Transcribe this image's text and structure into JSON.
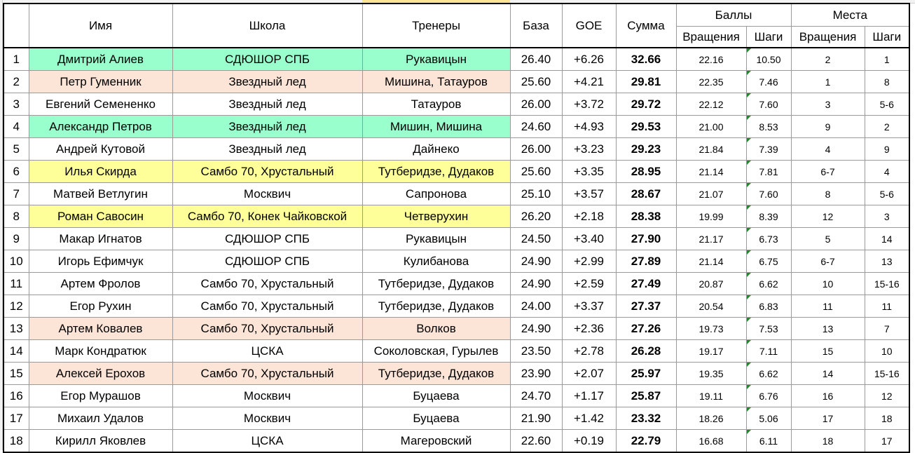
{
  "colors": {
    "green": "#99ffcc",
    "peach": "#fce4d6",
    "yellow": "#ffff99",
    "white": "#ffffff",
    "mark": "#1e8c2e"
  },
  "header": {
    "name": "Имя",
    "school": "Школа",
    "coaches": "Тренеры",
    "base": "База",
    "goe": "GOE",
    "total": "Сумма",
    "points": "Баллы",
    "places": "Места",
    "spins": "Вращения",
    "steps": "Шаги"
  },
  "rows": [
    {
      "n": "1",
      "name": "Дмитрий Алиев",
      "school": "СДЮШОР СПБ",
      "coaches": "Рукавицын",
      "base": "26.40",
      "goe": "+6.26",
      "total": "32.66",
      "pts_spins": "22.16",
      "pts_steps": "10.50",
      "pl_spins": "2",
      "pl_steps": "1",
      "hl": "green"
    },
    {
      "n": "2",
      "name": "Петр Гуменник",
      "school": "Звездный лед",
      "coaches": "Мишина, Татауров",
      "base": "25.60",
      "goe": "+4.21",
      "total": "29.81",
      "pts_spins": "22.35",
      "pts_steps": "7.46",
      "pl_spins": "1",
      "pl_steps": "8",
      "hl": "peach"
    },
    {
      "n": "3",
      "name": "Евгений Семененко",
      "school": "Звездный лед",
      "coaches": "Татауров",
      "base": "26.00",
      "goe": "+3.72",
      "total": "29.72",
      "pts_spins": "22.12",
      "pts_steps": "7.60",
      "pl_spins": "3",
      "pl_steps": "5-6",
      "hl": "white"
    },
    {
      "n": "4",
      "name": "Александр Петров",
      "school": "Звездный лед",
      "coaches": "Мишин, Мишина",
      "base": "24.60",
      "goe": "+4.93",
      "total": "29.53",
      "pts_spins": "21.00",
      "pts_steps": "8.53",
      "pl_spins": "9",
      "pl_steps": "2",
      "hl": "green"
    },
    {
      "n": "5",
      "name": "Андрей Кутовой",
      "school": "Звездный лед",
      "coaches": "Дайнеко",
      "base": "26.00",
      "goe": "+3.23",
      "total": "29.23",
      "pts_spins": "21.84",
      "pts_steps": "7.39",
      "pl_spins": "4",
      "pl_steps": "9",
      "hl": "white"
    },
    {
      "n": "6",
      "name": "Илья Скирда",
      "school": "Самбо 70, Хрустальный",
      "coaches": "Тутберидзе, Дудаков",
      "base": "25.60",
      "goe": "+3.35",
      "total": "28.95",
      "pts_spins": "21.14",
      "pts_steps": "7.81",
      "pl_spins": "6-7",
      "pl_steps": "4",
      "hl": "yellow"
    },
    {
      "n": "7",
      "name": "Матвей Ветлугин",
      "school": "Москвич",
      "coaches": "Сапронова",
      "base": "25.10",
      "goe": "+3.57",
      "total": "28.67",
      "pts_spins": "21.07",
      "pts_steps": "7.60",
      "pl_spins": "8",
      "pl_steps": "5-6",
      "hl": "white"
    },
    {
      "n": "8",
      "name": "Роман Савосин",
      "school": "Самбо 70, Конек Чайковской",
      "coaches": "Четверухин",
      "base": "26.20",
      "goe": "+2.18",
      "total": "28.38",
      "pts_spins": "19.99",
      "pts_steps": "8.39",
      "pl_spins": "12",
      "pl_steps": "3",
      "hl": "yellow"
    },
    {
      "n": "9",
      "name": "Макар Игнатов",
      "school": "СДЮШОР СПБ",
      "coaches": "Рукавицын",
      "base": "24.50",
      "goe": "+3.40",
      "total": "27.90",
      "pts_spins": "21.17",
      "pts_steps": "6.73",
      "pl_spins": "5",
      "pl_steps": "14",
      "hl": "white"
    },
    {
      "n": "10",
      "name": "Игорь Ефимчук",
      "school": "СДЮШОР СПБ",
      "coaches": "Кулибанова",
      "base": "24.90",
      "goe": "+2.99",
      "total": "27.89",
      "pts_spins": "21.14",
      "pts_steps": "6.75",
      "pl_spins": "6-7",
      "pl_steps": "13",
      "hl": "white"
    },
    {
      "n": "11",
      "name": "Артем Фролов",
      "school": "Самбо 70, Хрустальный",
      "coaches": "Тутберидзе, Дудаков",
      "base": "24.90",
      "goe": "+2.59",
      "total": "27.49",
      "pts_spins": "20.87",
      "pts_steps": "6.62",
      "pl_spins": "10",
      "pl_steps": "15-16",
      "hl": "white"
    },
    {
      "n": "12",
      "name": "Егор Рухин",
      "school": "Самбо 70, Хрустальный",
      "coaches": "Тутберидзе, Дудаков",
      "base": "24.00",
      "goe": "+3.37",
      "total": "27.37",
      "pts_spins": "20.54",
      "pts_steps": "6.83",
      "pl_spins": "11",
      "pl_steps": "11",
      "hl": "white"
    },
    {
      "n": "13",
      "name": "Артем Ковалев",
      "school": "Самбо 70, Хрустальный",
      "coaches": "Волков",
      "base": "24.90",
      "goe": "+2.36",
      "total": "27.26",
      "pts_spins": "19.73",
      "pts_steps": "7.53",
      "pl_spins": "13",
      "pl_steps": "7",
      "hl": "peach"
    },
    {
      "n": "14",
      "name": "Марк Кондратюк",
      "school": "ЦСКА",
      "coaches": "Соколовская, Гурылев",
      "base": "23.50",
      "goe": "+2.78",
      "total": "26.28",
      "pts_spins": "19.17",
      "pts_steps": "7.11",
      "pl_spins": "15",
      "pl_steps": "10",
      "hl": "white"
    },
    {
      "n": "15",
      "name": "Алексей Ерохов",
      "school": "Самбо 70, Хрустальный",
      "coaches": "Тутберидзе, Дудаков",
      "base": "23.90",
      "goe": "+2.07",
      "total": "25.97",
      "pts_spins": "19.35",
      "pts_steps": "6.62",
      "pl_spins": "14",
      "pl_steps": "15-16",
      "hl": "peach"
    },
    {
      "n": "16",
      "name": "Егор Мурашов",
      "school": "Москвич",
      "coaches": "Буцаева",
      "base": "24.70",
      "goe": "+1.17",
      "total": "25.87",
      "pts_spins": "19.11",
      "pts_steps": "6.76",
      "pl_spins": "16",
      "pl_steps": "12",
      "hl": "white"
    },
    {
      "n": "17",
      "name": "Михаил Удалов",
      "school": "Москвич",
      "coaches": "Буцаева",
      "base": "21.90",
      "goe": "+1.42",
      "total": "23.32",
      "pts_spins": "18.26",
      "pts_steps": "5.06",
      "pl_spins": "17",
      "pl_steps": "18",
      "hl": "white"
    },
    {
      "n": "18",
      "name": "Кирилл Яковлев",
      "school": "ЦСКА",
      "coaches": "Магеровский",
      "base": "22.60",
      "goe": "+0.19",
      "total": "22.79",
      "pts_spins": "16.68",
      "pts_steps": "6.11",
      "pl_spins": "18",
      "pl_steps": "17",
      "hl": "white"
    }
  ]
}
